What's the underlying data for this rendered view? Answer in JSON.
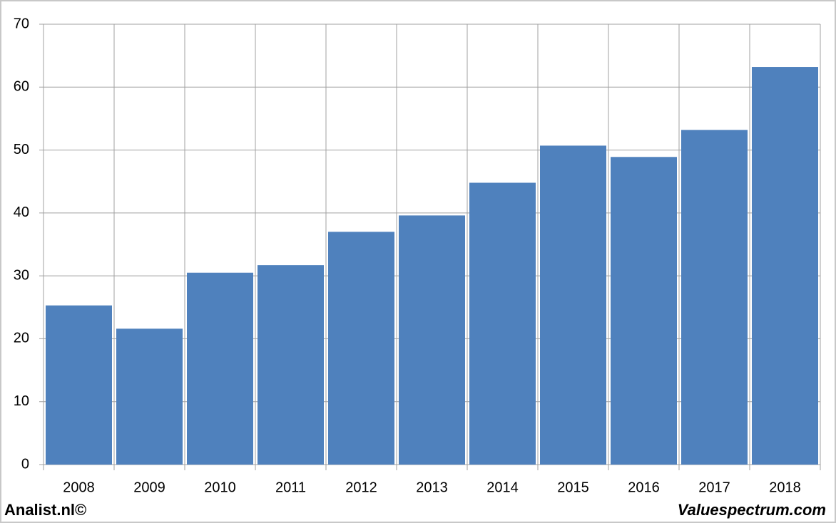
{
  "chart_data": {
    "type": "bar",
    "categories": [
      "2008",
      "2009",
      "2010",
      "2011",
      "2012",
      "2013",
      "2014",
      "2015",
      "2016",
      "2017",
      "2018"
    ],
    "values": [
      25.3,
      21.6,
      30.5,
      31.7,
      37.0,
      39.6,
      44.8,
      50.7,
      48.9,
      53.2,
      63.2
    ],
    "color": "#4f81bd",
    "ylim": [
      0,
      70
    ],
    "yticks": [
      0,
      10,
      20,
      30,
      40,
      50,
      60,
      70
    ],
    "grid": true
  },
  "footer": {
    "left": "Analist.nl©",
    "right": "Valuespectrum.com"
  }
}
